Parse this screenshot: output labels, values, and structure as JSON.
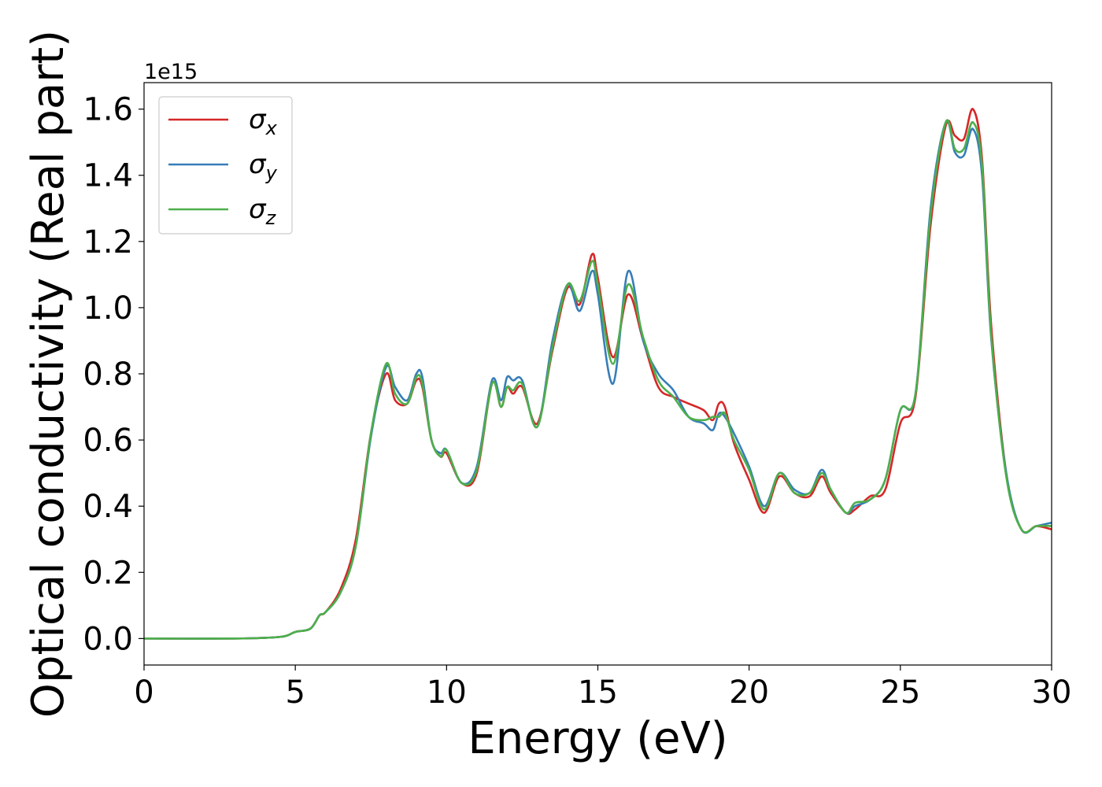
{
  "chart_data": {
    "type": "line",
    "xlabel": "Energy (eV)",
    "ylabel": "Optical conductivity (Real part)",
    "offset_text": "1e15",
    "xlim": [
      0,
      30
    ],
    "ylim": [
      -0.08,
      1.68
    ],
    "xticks": [
      0,
      5,
      10,
      15,
      20,
      25,
      30
    ],
    "xtick_labels": [
      "0",
      "5",
      "10",
      "15",
      "20",
      "25",
      "30"
    ],
    "yticks": [
      0.0,
      0.2,
      0.4,
      0.6,
      0.8,
      1.0,
      1.2,
      1.4,
      1.6
    ],
    "ytick_labels": [
      "0.0",
      "0.2",
      "0.4",
      "0.6",
      "0.8",
      "1.0",
      "1.2",
      "1.4",
      "1.6"
    ],
    "grid": false,
    "legend_position": "top-left",
    "series": [
      {
        "name": "σx",
        "symbol": "σ",
        "sub": "x",
        "color": "#d62728",
        "x": [
          0,
          3,
          4.5,
          5,
          5.5,
          5.8,
          6,
          6.5,
          7,
          7.5,
          8,
          8.3,
          8.7,
          9,
          9.2,
          9.5,
          9.8,
          10,
          10.5,
          11,
          11.5,
          11.8,
          12,
          12.2,
          12.5,
          13,
          13.5,
          14,
          14.4,
          14.8,
          15,
          15.5,
          16,
          16.5,
          17,
          17.5,
          18,
          18.5,
          18.8,
          19,
          19.2,
          19.5,
          20,
          20.5,
          21,
          21.5,
          22,
          22.4,
          22.7,
          23.2,
          23.5,
          24,
          24.5,
          25,
          25.5,
          26,
          26.5,
          26.8,
          27.1,
          27.4,
          27.7,
          28,
          28.5,
          29,
          29.5,
          30
        ],
        "y": [
          0,
          0,
          0.005,
          0.02,
          0.03,
          0.07,
          0.08,
          0.15,
          0.3,
          0.62,
          0.8,
          0.72,
          0.71,
          0.78,
          0.76,
          0.6,
          0.55,
          0.56,
          0.47,
          0.5,
          0.77,
          0.7,
          0.76,
          0.74,
          0.76,
          0.65,
          0.87,
          1.06,
          1.01,
          1.16,
          1.09,
          0.85,
          1.04,
          0.9,
          0.76,
          0.73,
          0.71,
          0.69,
          0.66,
          0.71,
          0.7,
          0.59,
          0.48,
          0.38,
          0.49,
          0.44,
          0.43,
          0.49,
          0.44,
          0.38,
          0.39,
          0.43,
          0.45,
          0.65,
          0.73,
          1.25,
          1.55,
          1.52,
          1.51,
          1.6,
          1.45,
          0.95,
          0.5,
          0.33,
          0.34,
          0.33
        ]
      },
      {
        "name": "σy",
        "symbol": "σ",
        "sub": "y",
        "color": "#377eb8",
        "x": [
          0,
          3,
          4.5,
          5,
          5.5,
          5.8,
          6,
          6.5,
          7,
          7.5,
          8,
          8.3,
          8.7,
          9,
          9.2,
          9.5,
          9.8,
          10,
          10.5,
          11,
          11.5,
          11.8,
          12,
          12.2,
          12.5,
          13,
          13.5,
          14,
          14.4,
          14.8,
          15,
          15.5,
          16,
          16.5,
          17,
          17.5,
          18,
          18.5,
          18.8,
          19,
          19.2,
          19.5,
          20,
          20.5,
          21,
          21.5,
          22,
          22.4,
          22.7,
          23.2,
          23.5,
          24,
          24.5,
          25,
          25.5,
          26,
          26.5,
          26.8,
          27.1,
          27.4,
          27.7,
          28,
          28.5,
          29,
          29.5,
          30
        ],
        "y": [
          0,
          0,
          0.005,
          0.02,
          0.03,
          0.07,
          0.08,
          0.14,
          0.28,
          0.61,
          0.82,
          0.76,
          0.72,
          0.8,
          0.79,
          0.6,
          0.56,
          0.57,
          0.47,
          0.52,
          0.78,
          0.72,
          0.79,
          0.78,
          0.78,
          0.64,
          0.9,
          1.07,
          0.99,
          1.11,
          1.04,
          0.77,
          1.11,
          0.9,
          0.8,
          0.75,
          0.67,
          0.65,
          0.63,
          0.68,
          0.67,
          0.62,
          0.52,
          0.4,
          0.5,
          0.45,
          0.44,
          0.51,
          0.45,
          0.38,
          0.4,
          0.42,
          0.48,
          0.69,
          0.74,
          1.3,
          1.56,
          1.47,
          1.46,
          1.54,
          1.4,
          0.91,
          0.5,
          0.33,
          0.34,
          0.35
        ]
      },
      {
        "name": "σz",
        "symbol": "σ",
        "sub": "z",
        "color": "#4daf4a",
        "x": [
          0,
          3,
          4.5,
          5,
          5.5,
          5.8,
          6,
          6.5,
          7,
          7.5,
          8,
          8.3,
          8.7,
          9,
          9.2,
          9.5,
          9.8,
          10,
          10.5,
          11,
          11.5,
          11.8,
          12,
          12.2,
          12.5,
          13,
          13.5,
          14,
          14.4,
          14.8,
          15,
          15.5,
          16,
          16.5,
          17,
          17.5,
          18,
          18.5,
          18.8,
          19,
          19.2,
          19.5,
          20,
          20.5,
          21,
          21.5,
          22,
          22.4,
          22.7,
          23.2,
          23.5,
          24,
          24.5,
          25,
          25.5,
          26,
          26.5,
          26.8,
          27.1,
          27.4,
          27.7,
          28,
          28.5,
          29,
          29.5,
          30
        ],
        "y": [
          0,
          0,
          0.005,
          0.02,
          0.03,
          0.07,
          0.08,
          0.14,
          0.28,
          0.62,
          0.83,
          0.74,
          0.71,
          0.79,
          0.77,
          0.6,
          0.55,
          0.57,
          0.47,
          0.51,
          0.77,
          0.7,
          0.76,
          0.75,
          0.77,
          0.64,
          0.88,
          1.07,
          1.02,
          1.14,
          1.07,
          0.83,
          1.07,
          0.91,
          0.78,
          0.73,
          0.67,
          0.66,
          0.67,
          0.67,
          0.68,
          0.6,
          0.51,
          0.39,
          0.5,
          0.44,
          0.44,
          0.5,
          0.45,
          0.38,
          0.41,
          0.42,
          0.48,
          0.69,
          0.74,
          1.28,
          1.56,
          1.48,
          1.48,
          1.56,
          1.43,
          0.92,
          0.49,
          0.33,
          0.34,
          0.34
        ]
      }
    ]
  }
}
